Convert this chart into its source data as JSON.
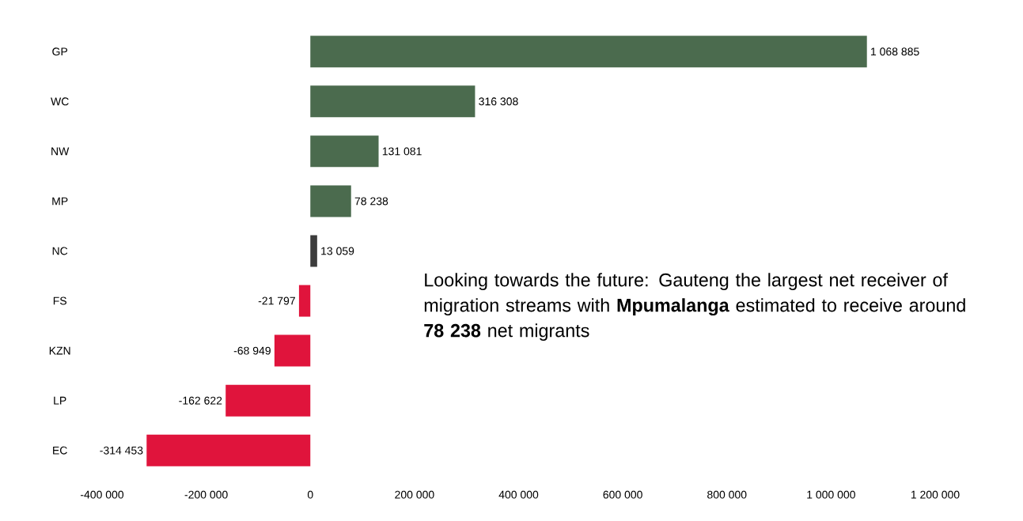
{
  "chart_data": {
    "type": "bar",
    "orientation": "horizontal",
    "categories": [
      "GP",
      "WC",
      "NW",
      "MP",
      "NC",
      "FS",
      "KZN",
      "LP",
      "EC"
    ],
    "values": [
      1068885,
      316308,
      131081,
      78238,
      13059,
      -21797,
      -68949,
      -162622,
      -314453
    ],
    "colors": [
      "#4b6b4e",
      "#4b6b4e",
      "#4b6b4e",
      "#4b6b4e",
      "#3c3c3c",
      "#e0143c",
      "#e0143c",
      "#e0143c",
      "#e0143c"
    ],
    "value_labels": [
      "1 068 885",
      "316 308",
      "131 081",
      "78 238",
      "13 059",
      "-21 797",
      "-68 949",
      "-162 622",
      "-314 453"
    ],
    "xlim": [
      -400000,
      1200000
    ],
    "xticks": [
      {
        "value": -400000,
        "label": "-400 000"
      },
      {
        "value": -200000,
        "label": "-200 000"
      },
      0,
      {
        "value": 200000,
        "label": "200 000"
      },
      {
        "value": 400000,
        "label": "400 000"
      },
      {
        "value": 600000,
        "label": "600 000"
      },
      {
        "value": 800000,
        "label": "800 000"
      },
      {
        "value": 1000000,
        "label": "1 000 000"
      },
      {
        "value": 1200000,
        "label": "1 200 000"
      }
    ],
    "annotations": [
      "Looking towards the future: Gauteng the largest net receiver of migration streams with **Mpumalanga** estimated to receive around **78 238** net migrants"
    ]
  }
}
